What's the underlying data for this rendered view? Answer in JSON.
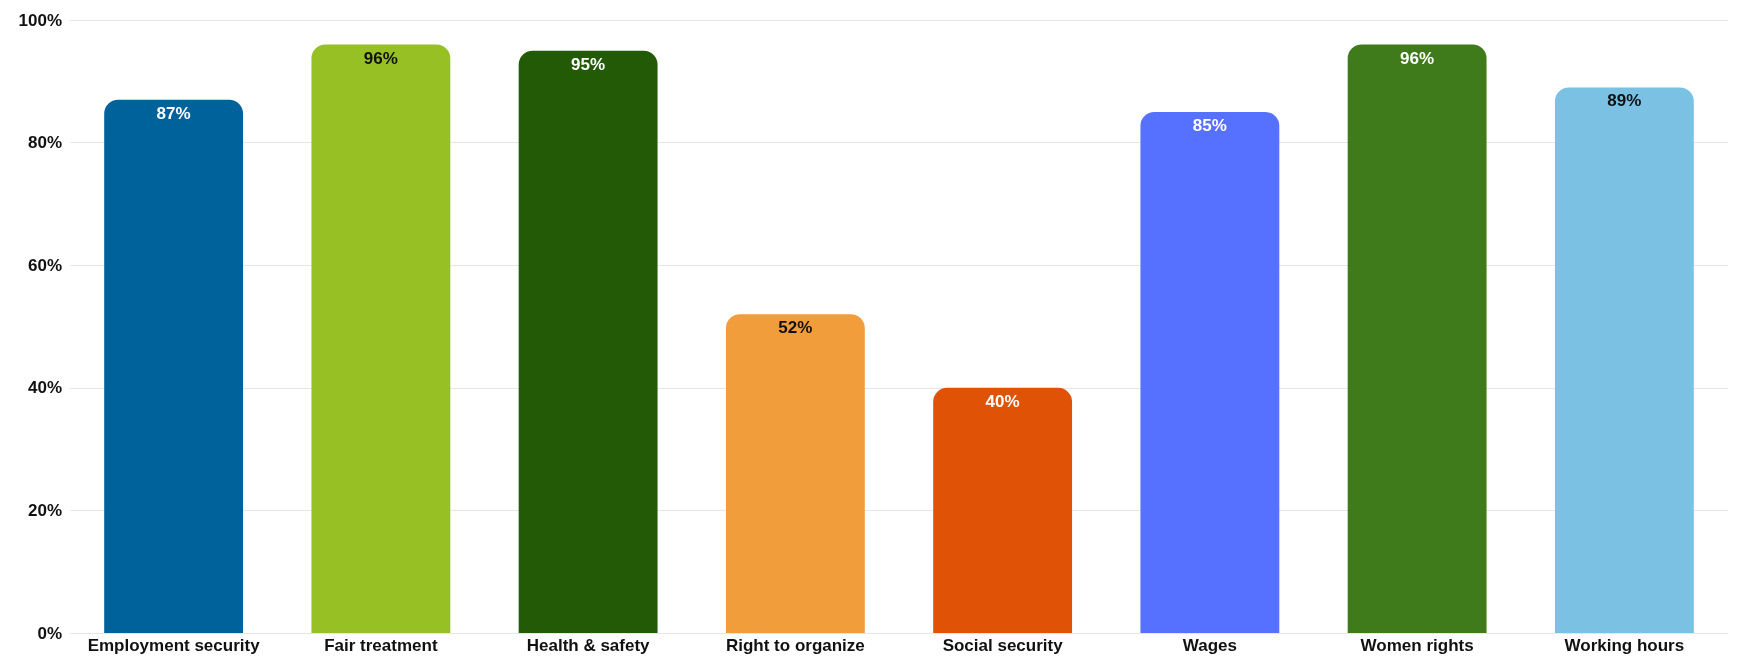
{
  "chart_data": {
    "type": "bar",
    "categories": [
      "Employment security",
      "Fair treatment",
      "Health & safety",
      "Right to organize",
      "Social security",
      "Wages",
      "Women rights",
      "Working hours"
    ],
    "values": [
      87,
      96,
      95,
      52,
      40,
      85,
      96,
      89
    ],
    "colors": [
      "#00629b",
      "#97c024",
      "#235a06",
      "#f29d3b",
      "#e05206",
      "#5671ff",
      "#3f7a1b",
      "#7ac1e4"
    ],
    "value_labels": [
      "87%",
      "96%",
      "95%",
      "52%",
      "40%",
      "85%",
      "96%",
      "89%"
    ],
    "ylim": [
      0,
      100
    ],
    "yticks": [
      {
        "value": 0,
        "label": "0%"
      },
      {
        "value": 20,
        "label": "20%"
      },
      {
        "value": 40,
        "label": "40%"
      },
      {
        "value": 60,
        "label": "60%"
      },
      {
        "value": 80,
        "label": "80%"
      },
      {
        "value": 100,
        "label": "100%"
      }
    ],
    "grid": "y"
  }
}
